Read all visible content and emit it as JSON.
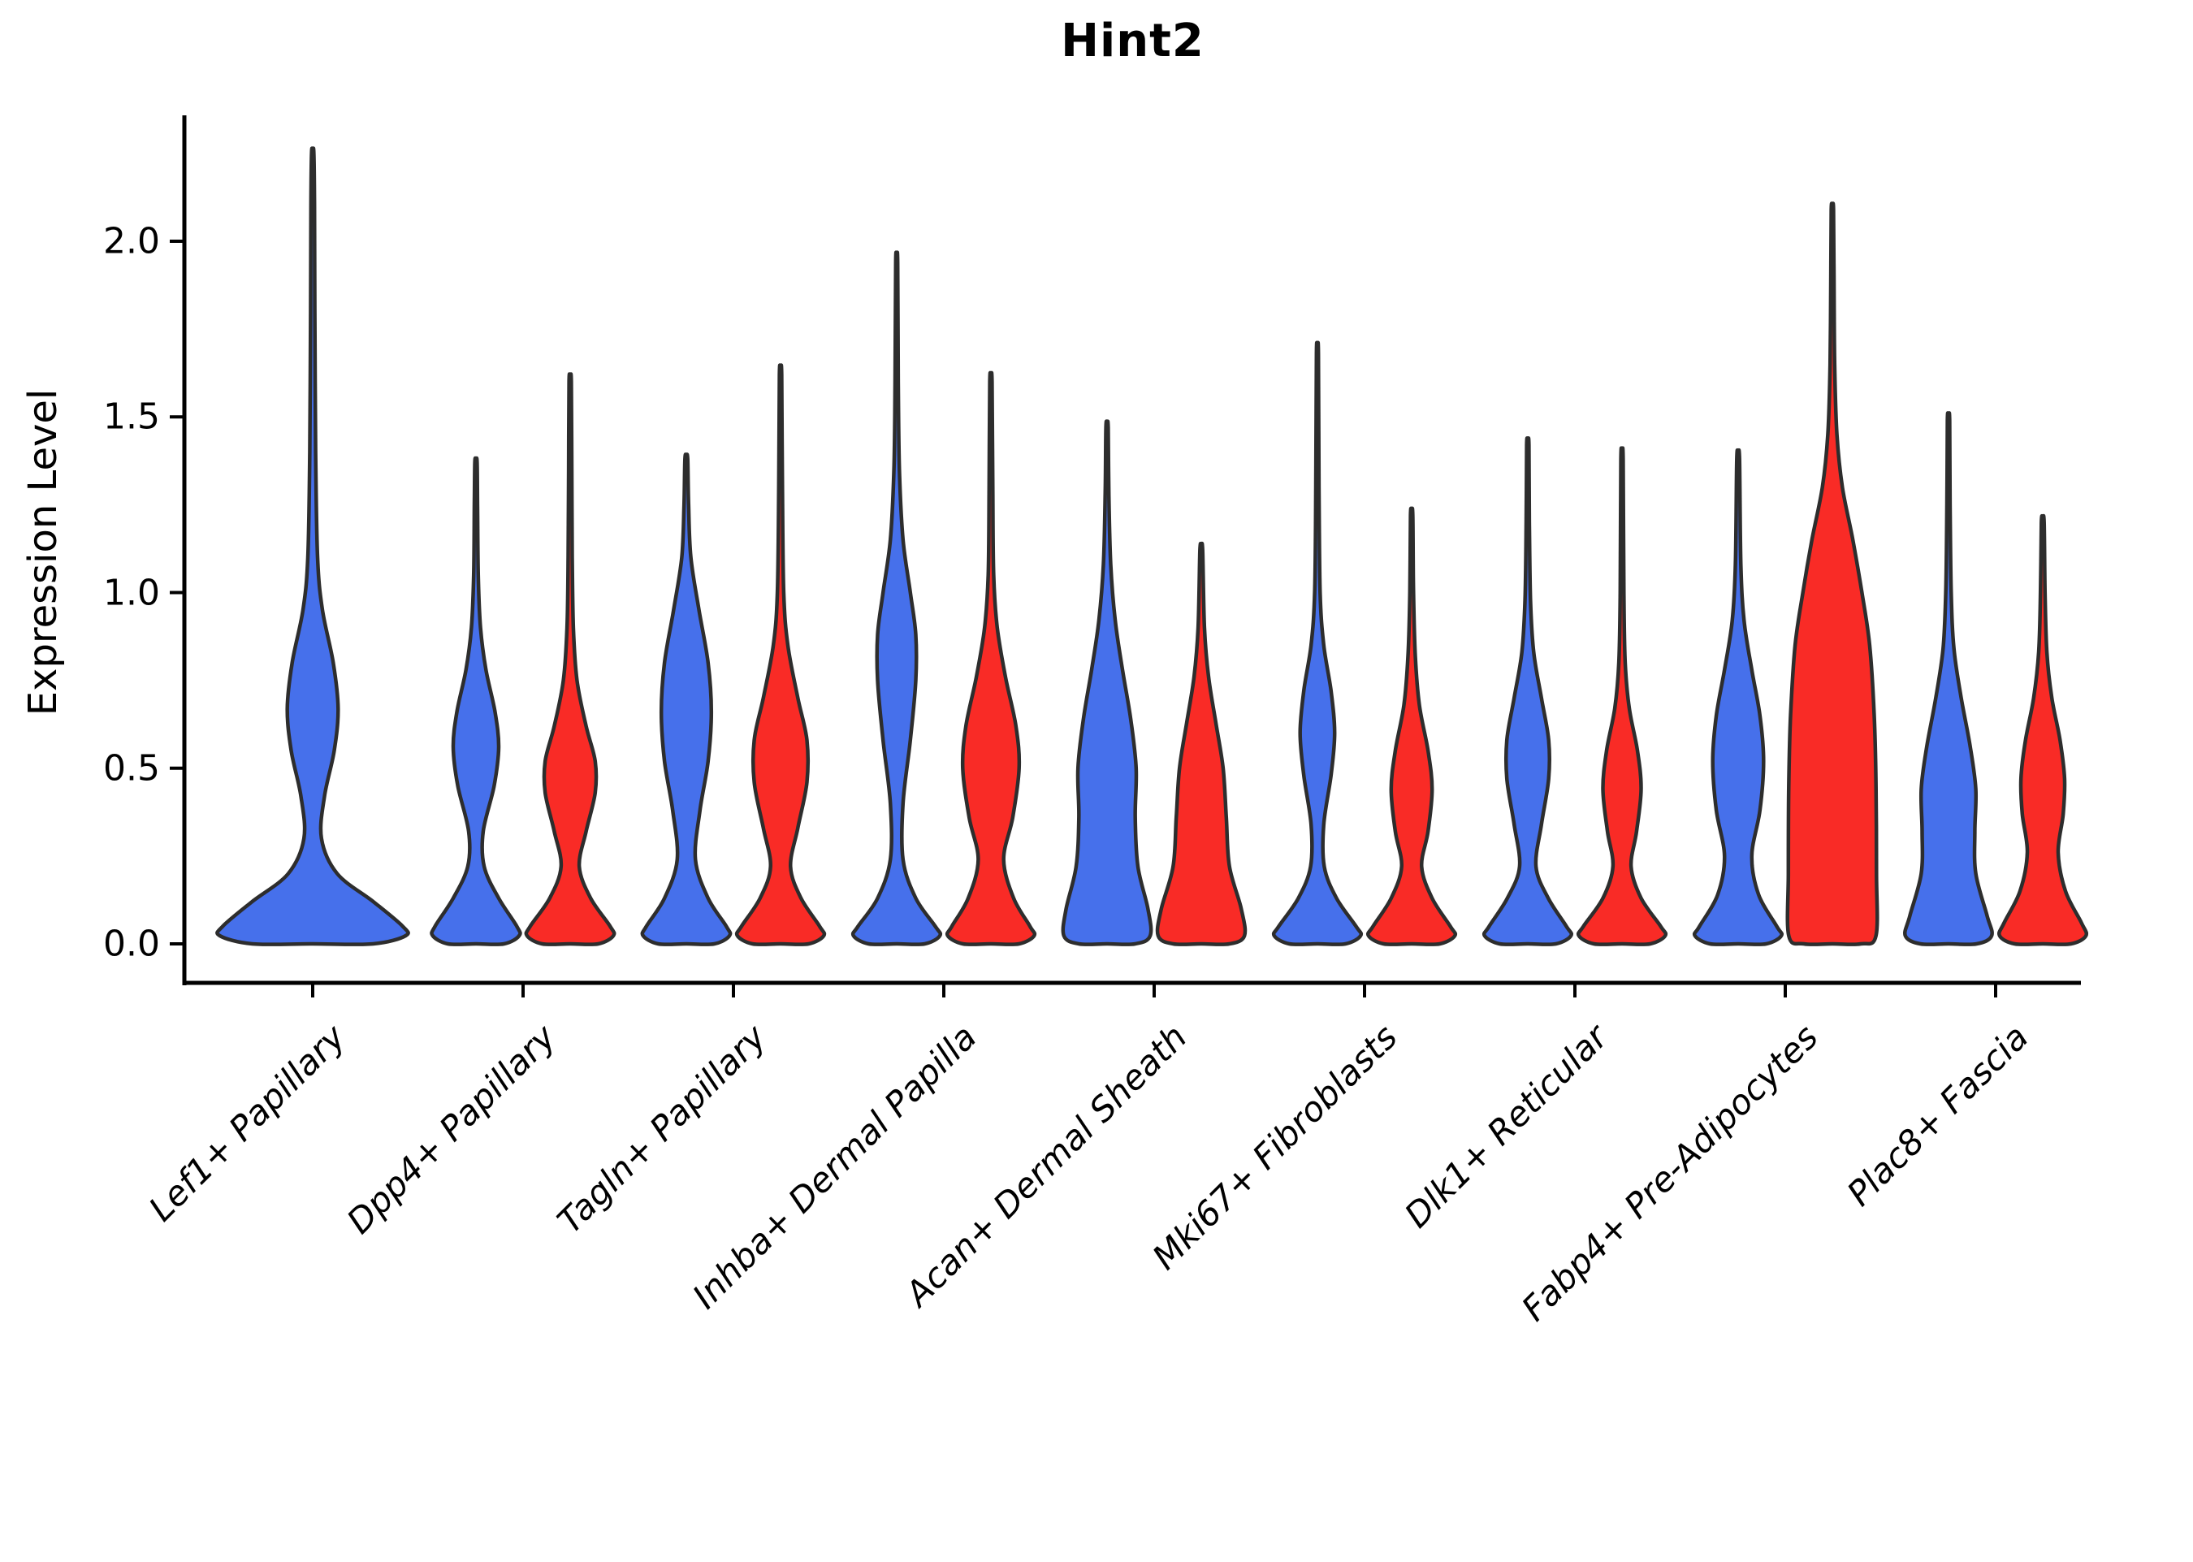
{
  "title": "Hint2",
  "ylabel": "Expression Level",
  "chart_data": {
    "type": "violin",
    "title": "Hint2",
    "xlabel": "",
    "ylabel": "Expression Level",
    "ylim": [
      -0.11,
      2.36
    ],
    "yticks": [
      0,
      0.5,
      1,
      1.5,
      2
    ],
    "ytick_labels": [
      "0.0",
      "0.5",
      "1.0",
      "1.5",
      "2.0"
    ],
    "grid": false,
    "legend": "none",
    "categories": [
      "Lef1+ Papillary",
      "Dpp4+ Papillary",
      "Tagln+ Papillary",
      "Inhba+ Dermal Papilla",
      "Acan+ Dermal Sheath",
      "Mki67+ Fibroblasts",
      "Dlk1+ Reticular",
      "Fabp4+ Pre-Adipocytes",
      "Plac8+ Fascia"
    ],
    "series": [
      {
        "name": "group-blue",
        "color": "#4670eb",
        "peak_expression": [
          2.25,
          1.37,
          1.38,
          1.94,
          1.47,
          1.68,
          1.42,
          1.38,
          1.49
        ]
      },
      {
        "name": "group-red",
        "color": "#f92b26",
        "peak_expression": [
          null,
          1.6,
          1.62,
          1.6,
          1.12,
          1.22,
          1.38,
          2.09,
          1.2
        ]
      }
    ],
    "style": {
      "violin_edge_color": "#2d2d2d",
      "violin_edge_width": 4.5,
      "axis_color": "#000000",
      "blue": "#4670eb",
      "red": "#f92b26"
    },
    "violins": [
      {
        "category_index": 0,
        "group": "blue",
        "offset": 0.0,
        "width": 0.93,
        "profile": [
          [
            0,
            0.95
          ],
          [
            0.05,
            0.92
          ],
          [
            0.12,
            0.62
          ],
          [
            0.2,
            0.25
          ],
          [
            0.3,
            0.09
          ],
          [
            0.42,
            0.12
          ],
          [
            0.55,
            0.22
          ],
          [
            0.67,
            0.26
          ],
          [
            0.8,
            0.21
          ],
          [
            0.95,
            0.1
          ],
          [
            1.1,
            0.05
          ],
          [
            1.4,
            0.03
          ],
          [
            1.8,
            0.022
          ],
          [
            2.1,
            0.018
          ],
          [
            2.25,
            0.012
          ]
        ]
      },
      {
        "category_index": 1,
        "group": "blue",
        "offset": -0.224,
        "width": 0.432,
        "profile": [
          [
            0,
            0.95
          ],
          [
            0.05,
            0.9
          ],
          [
            0.13,
            0.5
          ],
          [
            0.22,
            0.18
          ],
          [
            0.32,
            0.16
          ],
          [
            0.45,
            0.4
          ],
          [
            0.56,
            0.5
          ],
          [
            0.66,
            0.42
          ],
          [
            0.78,
            0.22
          ],
          [
            0.9,
            0.1
          ],
          [
            1.05,
            0.05
          ],
          [
            1.25,
            0.035
          ],
          [
            1.37,
            0.025
          ]
        ]
      },
      {
        "category_index": 1,
        "group": "red",
        "offset": 0.224,
        "width": 0.432,
        "profile": [
          [
            0,
            0.95
          ],
          [
            0.05,
            0.88
          ],
          [
            0.13,
            0.45
          ],
          [
            0.22,
            0.2
          ],
          [
            0.32,
            0.35
          ],
          [
            0.43,
            0.55
          ],
          [
            0.52,
            0.55
          ],
          [
            0.62,
            0.35
          ],
          [
            0.75,
            0.15
          ],
          [
            0.9,
            0.07
          ],
          [
            1.1,
            0.045
          ],
          [
            1.35,
            0.035
          ],
          [
            1.6,
            0.025
          ]
        ]
      },
      {
        "category_index": 2,
        "group": "blue",
        "offset": -0.224,
        "width": 0.432,
        "profile": [
          [
            0,
            0.95
          ],
          [
            0.05,
            0.88
          ],
          [
            0.13,
            0.48
          ],
          [
            0.24,
            0.2
          ],
          [
            0.38,
            0.3
          ],
          [
            0.52,
            0.48
          ],
          [
            0.66,
            0.55
          ],
          [
            0.8,
            0.48
          ],
          [
            0.95,
            0.28
          ],
          [
            1.1,
            0.1
          ],
          [
            1.25,
            0.05
          ],
          [
            1.38,
            0.03
          ]
        ]
      },
      {
        "category_index": 2,
        "group": "red",
        "offset": 0.224,
        "width": 0.432,
        "profile": [
          [
            0,
            0.95
          ],
          [
            0.05,
            0.86
          ],
          [
            0.13,
            0.45
          ],
          [
            0.22,
            0.22
          ],
          [
            0.33,
            0.38
          ],
          [
            0.46,
            0.58
          ],
          [
            0.58,
            0.58
          ],
          [
            0.7,
            0.38
          ],
          [
            0.85,
            0.16
          ],
          [
            1.0,
            0.07
          ],
          [
            1.3,
            0.04
          ],
          [
            1.62,
            0.025
          ]
        ]
      },
      {
        "category_index": 3,
        "group": "blue",
        "offset": -0.224,
        "width": 0.432,
        "profile": [
          [
            0,
            0.95
          ],
          [
            0.05,
            0.85
          ],
          [
            0.13,
            0.42
          ],
          [
            0.24,
            0.14
          ],
          [
            0.4,
            0.14
          ],
          [
            0.58,
            0.3
          ],
          [
            0.75,
            0.42
          ],
          [
            0.88,
            0.42
          ],
          [
            1.0,
            0.3
          ],
          [
            1.15,
            0.14
          ],
          [
            1.35,
            0.06
          ],
          [
            1.6,
            0.035
          ],
          [
            1.94,
            0.022
          ]
        ]
      },
      {
        "category_index": 3,
        "group": "red",
        "offset": 0.224,
        "width": 0.432,
        "profile": [
          [
            0,
            0.95
          ],
          [
            0.05,
            0.86
          ],
          [
            0.13,
            0.5
          ],
          [
            0.24,
            0.28
          ],
          [
            0.36,
            0.48
          ],
          [
            0.5,
            0.62
          ],
          [
            0.62,
            0.55
          ],
          [
            0.76,
            0.32
          ],
          [
            0.9,
            0.14
          ],
          [
            1.05,
            0.06
          ],
          [
            1.3,
            0.04
          ],
          [
            1.6,
            0.025
          ]
        ]
      },
      {
        "category_index": 4,
        "group": "blue",
        "offset": -0.224,
        "width": 0.432,
        "profile": [
          [
            0,
            0.95
          ],
          [
            0.1,
            0.9
          ],
          [
            0.22,
            0.68
          ],
          [
            0.36,
            0.62
          ],
          [
            0.5,
            0.64
          ],
          [
            0.64,
            0.52
          ],
          [
            0.78,
            0.34
          ],
          [
            0.92,
            0.18
          ],
          [
            1.08,
            0.08
          ],
          [
            1.28,
            0.04
          ],
          [
            1.47,
            0.025
          ]
        ]
      },
      {
        "category_index": 4,
        "group": "red",
        "offset": 0.224,
        "width": 0.432,
        "profile": [
          [
            0,
            0.95
          ],
          [
            0.1,
            0.88
          ],
          [
            0.22,
            0.62
          ],
          [
            0.36,
            0.55
          ],
          [
            0.5,
            0.48
          ],
          [
            0.63,
            0.32
          ],
          [
            0.76,
            0.16
          ],
          [
            0.9,
            0.07
          ],
          [
            1.12,
            0.03
          ]
        ]
      },
      {
        "category_index": 5,
        "group": "blue",
        "offset": -0.224,
        "width": 0.432,
        "profile": [
          [
            0,
            0.95
          ],
          [
            0.05,
            0.85
          ],
          [
            0.13,
            0.42
          ],
          [
            0.22,
            0.15
          ],
          [
            0.34,
            0.14
          ],
          [
            0.48,
            0.3
          ],
          [
            0.6,
            0.38
          ],
          [
            0.72,
            0.3
          ],
          [
            0.85,
            0.14
          ],
          [
            1.0,
            0.06
          ],
          [
            1.3,
            0.035
          ],
          [
            1.68,
            0.022
          ]
        ]
      },
      {
        "category_index": 5,
        "group": "red",
        "offset": 0.224,
        "width": 0.432,
        "profile": [
          [
            0,
            0.95
          ],
          [
            0.05,
            0.85
          ],
          [
            0.13,
            0.45
          ],
          [
            0.22,
            0.22
          ],
          [
            0.32,
            0.36
          ],
          [
            0.44,
            0.45
          ],
          [
            0.55,
            0.36
          ],
          [
            0.68,
            0.17
          ],
          [
            0.82,
            0.08
          ],
          [
            1.0,
            0.04
          ],
          [
            1.22,
            0.025
          ]
        ]
      },
      {
        "category_index": 6,
        "group": "blue",
        "offset": -0.224,
        "width": 0.432,
        "profile": [
          [
            0,
            0.95
          ],
          [
            0.05,
            0.85
          ],
          [
            0.13,
            0.45
          ],
          [
            0.22,
            0.18
          ],
          [
            0.34,
            0.3
          ],
          [
            0.47,
            0.46
          ],
          [
            0.58,
            0.46
          ],
          [
            0.7,
            0.3
          ],
          [
            0.83,
            0.13
          ],
          [
            0.98,
            0.06
          ],
          [
            1.2,
            0.035
          ],
          [
            1.42,
            0.025
          ]
        ]
      },
      {
        "category_index": 6,
        "group": "red",
        "offset": 0.224,
        "width": 0.432,
        "profile": [
          [
            0,
            0.95
          ],
          [
            0.05,
            0.85
          ],
          [
            0.13,
            0.42
          ],
          [
            0.22,
            0.2
          ],
          [
            0.32,
            0.32
          ],
          [
            0.44,
            0.42
          ],
          [
            0.55,
            0.34
          ],
          [
            0.67,
            0.16
          ],
          [
            0.8,
            0.07
          ],
          [
            1.0,
            0.04
          ],
          [
            1.38,
            0.025
          ]
        ]
      },
      {
        "category_index": 7,
        "group": "blue",
        "offset": -0.224,
        "width": 0.432,
        "profile": [
          [
            0,
            0.95
          ],
          [
            0.05,
            0.85
          ],
          [
            0.14,
            0.45
          ],
          [
            0.25,
            0.3
          ],
          [
            0.38,
            0.48
          ],
          [
            0.52,
            0.56
          ],
          [
            0.65,
            0.48
          ],
          [
            0.78,
            0.3
          ],
          [
            0.92,
            0.13
          ],
          [
            1.08,
            0.06
          ],
          [
            1.38,
            0.03
          ]
        ]
      },
      {
        "category_index": 7,
        "group": "red",
        "offset": 0.224,
        "width": 0.432,
        "profile": [
          [
            0,
            0.96
          ],
          [
            0.2,
            0.97
          ],
          [
            0.45,
            0.96
          ],
          [
            0.65,
            0.92
          ],
          [
            0.85,
            0.82
          ],
          [
            1.0,
            0.65
          ],
          [
            1.15,
            0.45
          ],
          [
            1.3,
            0.22
          ],
          [
            1.45,
            0.1
          ],
          [
            1.65,
            0.05
          ],
          [
            1.9,
            0.035
          ],
          [
            2.09,
            0.025
          ]
        ]
      },
      {
        "category_index": 8,
        "group": "blue",
        "offset": -0.224,
        "width": 0.432,
        "profile": [
          [
            0,
            0.95
          ],
          [
            0.08,
            0.85
          ],
          [
            0.2,
            0.6
          ],
          [
            0.32,
            0.58
          ],
          [
            0.44,
            0.6
          ],
          [
            0.56,
            0.48
          ],
          [
            0.7,
            0.28
          ],
          [
            0.84,
            0.12
          ],
          [
            1.0,
            0.06
          ],
          [
            1.25,
            0.035
          ],
          [
            1.49,
            0.025
          ]
        ]
      },
      {
        "category_index": 8,
        "group": "red",
        "offset": 0.224,
        "width": 0.432,
        "profile": [
          [
            0,
            0.95
          ],
          [
            0.06,
            0.85
          ],
          [
            0.15,
            0.5
          ],
          [
            0.26,
            0.34
          ],
          [
            0.37,
            0.45
          ],
          [
            0.47,
            0.48
          ],
          [
            0.58,
            0.38
          ],
          [
            0.7,
            0.2
          ],
          [
            0.83,
            0.09
          ],
          [
            1.0,
            0.05
          ],
          [
            1.2,
            0.03
          ]
        ]
      }
    ]
  }
}
